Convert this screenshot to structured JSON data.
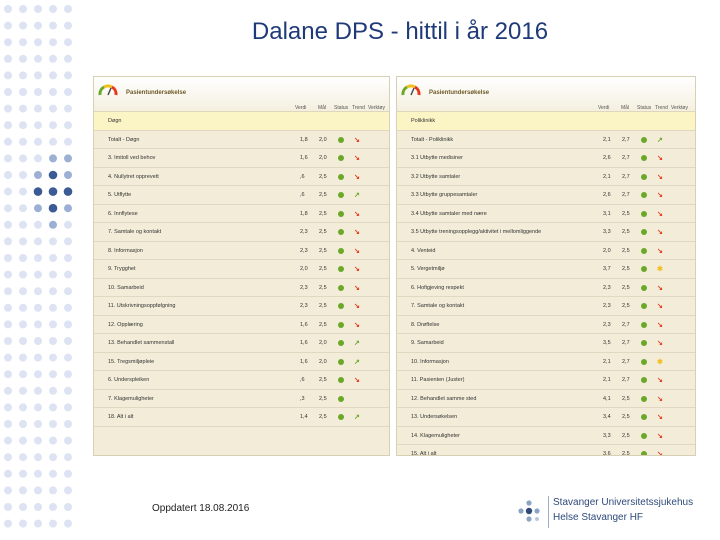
{
  "slide": {
    "title": "Dalane DPS - hittil i år 2016",
    "footer_date": "Oppdatert 18.08.2016"
  },
  "colors": {
    "green": "#6aa828",
    "red": "#e23a1a",
    "yellow": "#f0c020"
  },
  "left_panel": {
    "title": "Pasientundersøkelse",
    "columns": [
      "Verdi",
      "Mål",
      "Status",
      "Trend",
      "Verktøy"
    ],
    "section_label": "Døgn",
    "rows": [
      {
        "label": "Totalt - Døgn",
        "verdi": "1,8",
        "maal": "2,0",
        "status": "green",
        "trend": "down"
      },
      {
        "label": "3. Imitoll ved behov",
        "verdi": "1,6",
        "maal": "2,0",
        "status": "green",
        "trend": "down"
      },
      {
        "label": "4. Nullytret opprevett",
        "verdi": ",6",
        "maal": "2,5",
        "status": "green",
        "trend": "down"
      },
      {
        "label": "5. Utflytte",
        "verdi": ",6",
        "maal": "2,5",
        "status": "green",
        "trend": "up"
      },
      {
        "label": "6. Innflytese",
        "verdi": "1,8",
        "maal": "2,5",
        "status": "green",
        "trend": "down"
      },
      {
        "label": "7. Samtale og kontakt",
        "verdi": "2,3",
        "maal": "2,5",
        "status": "green",
        "trend": "down"
      },
      {
        "label": "8. Informasjon",
        "verdi": "2,3",
        "maal": "2,5",
        "status": "green",
        "trend": "down"
      },
      {
        "label": "9. Trygghet",
        "verdi": "2,0",
        "maal": "2,5",
        "status": "green",
        "trend": "down"
      },
      {
        "label": "10. Samarbeid",
        "verdi": "2,3",
        "maal": "2,5",
        "status": "green",
        "trend": "down"
      },
      {
        "label": "11. Utskrivningsoppfølgning",
        "verdi": "2,3",
        "maal": "2,5",
        "status": "green",
        "trend": "down"
      },
      {
        "label": "12. Opplæring",
        "verdi": "1,6",
        "maal": "2,5",
        "status": "green",
        "trend": "down"
      },
      {
        "label": "13. Behandlet sammenstall",
        "verdi": "1,6",
        "maal": "2,0",
        "status": "green",
        "trend": "up"
      },
      {
        "label": "15. Tregsmiljøpleie",
        "verdi": "1,6",
        "maal": "2,0",
        "status": "green",
        "trend": "up"
      },
      {
        "label": "6. Underspleiken",
        "verdi": ",6",
        "maal": "2,5",
        "status": "green",
        "trend": "down"
      },
      {
        "label": "7. Klagemuligheter",
        "verdi": ",3",
        "maal": "2,5",
        "status": "green",
        "trend": ""
      },
      {
        "label": "18. Alt i alt",
        "verdi": "1,4",
        "maal": "2,5",
        "status": "green",
        "trend": "up"
      }
    ]
  },
  "right_panel": {
    "title": "Pasientundersøkelse",
    "columns": [
      "Verdi",
      "Mål",
      "Status",
      "Trend",
      "Verktøy"
    ],
    "section_label": "Poliklinikk",
    "rows": [
      {
        "label": "Totalt - Poliklinikk",
        "verdi": "2,1",
        "maal": "2,7",
        "status": "green",
        "trend": "up"
      },
      {
        "label": "3.1 Utbytte medisiner",
        "verdi": "2,6",
        "maal": "2,7",
        "status": "green",
        "trend": "down"
      },
      {
        "label": "3.2 Utbytte samtaler",
        "verdi": "2,1",
        "maal": "2,7",
        "status": "green",
        "trend": "down"
      },
      {
        "label": "3.3 Utbytte gruppesamtaler",
        "verdi": "2,6",
        "maal": "2,7",
        "status": "green",
        "trend": "down"
      },
      {
        "label": "3.4 Utbytte samtaler med nære",
        "verdi": "3,1",
        "maal": "2,5",
        "status": "green",
        "trend": "down"
      },
      {
        "label": "3.5 Utbytte treningsopplegg/aktivitet i mellomliggende",
        "verdi": "3,3",
        "maal": "2,5",
        "status": "green",
        "trend": "down"
      },
      {
        "label": "4. Venteid",
        "verdi": "2,0",
        "maal": "2,5",
        "status": "green",
        "trend": "down"
      },
      {
        "label": "5. Vergetmiljø",
        "verdi": "3,7",
        "maal": "2,5",
        "status": "green",
        "trend": "neutral"
      },
      {
        "label": "6. Hofigjeving respekt",
        "verdi": "2,3",
        "maal": "2,5",
        "status": "green",
        "trend": "down"
      },
      {
        "label": "7. Samtale og kontakt",
        "verdi": "2,3",
        "maal": "2,5",
        "status": "green",
        "trend": "down"
      },
      {
        "label": "8. Drøftelse",
        "verdi": "2,3",
        "maal": "2,7",
        "status": "green",
        "trend": "down"
      },
      {
        "label": "9. Samarbeid",
        "verdi": "3,5",
        "maal": "2,7",
        "status": "green",
        "trend": "down"
      },
      {
        "label": "10. Informasjon",
        "verdi": "2,1",
        "maal": "2,7",
        "status": "green",
        "trend": "neutral"
      },
      {
        "label": "11. Pasienten (Juster)",
        "verdi": "2,1",
        "maal": "2,7",
        "status": "green",
        "trend": "down"
      },
      {
        "label": "12. Behandlet samme sted",
        "verdi": "4,1",
        "maal": "2,5",
        "status": "green",
        "trend": "down"
      },
      {
        "label": "13. Undersøkelsen",
        "verdi": "3,4",
        "maal": "2,5",
        "status": "green",
        "trend": "down"
      },
      {
        "label": "14. Klagemuligheter",
        "verdi": "3,3",
        "maal": "2,5",
        "status": "green",
        "trend": "down"
      },
      {
        "label": "15. Alt i alt",
        "verdi": "3,6",
        "maal": "2,5",
        "status": "green",
        "trend": "down"
      }
    ]
  },
  "logo": {
    "line1": "Stavanger Universitetssjukehus",
    "line2": "Helse Stavanger HF"
  }
}
